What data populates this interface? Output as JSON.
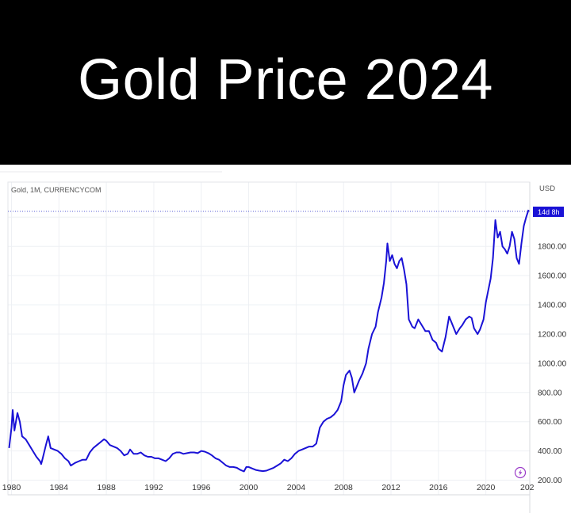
{
  "banner": {
    "title": "Gold Price 2024"
  },
  "chart_header": {
    "symbol": "Gold, 1M, CURRENCYCOM",
    "currency": "USD",
    "countdown": "14d 8h"
  },
  "colors": {
    "line": "#1a12d6",
    "grid": "#eef0f4",
    "badge": "#1a12d6",
    "lightning": "#9b3cc9"
  },
  "icons": {
    "lightning": "lightning-icon"
  },
  "chart_data": {
    "type": "line",
    "title": "",
    "xlabel": "",
    "ylabel": "",
    "x_tick_labels": [
      "1980",
      "1984",
      "1988",
      "1992",
      "1996",
      "2000",
      "2004",
      "2008",
      "2012",
      "2016",
      "2020",
      "202"
    ],
    "y_tick_labels": [
      "200.00",
      "400.00",
      "600.00",
      "800.00",
      "1000.00",
      "1200.00",
      "1400.00",
      "1600.00",
      "1800.00"
    ],
    "xlim": [
      1979.7,
      2023.7
    ],
    "ylim": [
      100,
      2240
    ],
    "grid": true,
    "series": [
      {
        "x": [
          1979.8,
          1980.0,
          1980.1,
          1980.25,
          1980.5,
          1980.7,
          1980.9,
          1981.2,
          1981.5,
          1981.8,
          1982.1,
          1982.4,
          1982.5,
          1982.6,
          1982.9,
          1983.1,
          1983.3,
          1983.6,
          1983.9,
          1984.2,
          1984.5,
          1984.8,
          1985.0,
          1985.2,
          1985.4,
          1985.7,
          1986.0,
          1986.3,
          1986.6,
          1986.9,
          1987.2,
          1987.5,
          1987.8,
          1988.0,
          1988.3,
          1988.6,
          1988.9,
          1989.2,
          1989.5,
          1989.8,
          1990.0,
          1990.3,
          1990.6,
          1990.9,
          1991.2,
          1991.5,
          1991.8,
          1992.1,
          1992.4,
          1992.7,
          1993.0,
          1993.3,
          1993.6,
          1993.9,
          1994.2,
          1994.5,
          1994.8,
          1995.1,
          1995.4,
          1995.7,
          1996.0,
          1996.3,
          1996.6,
          1996.9,
          1997.2,
          1997.5,
          1997.8,
          1998.1,
          1998.4,
          1998.7,
          1999.0,
          1999.3,
          1999.6,
          1999.8,
          2000.0,
          2000.3,
          2000.6,
          2000.9,
          2001.2,
          2001.5,
          2001.8,
          2002.1,
          2002.4,
          2002.7,
          2003.0,
          2003.3,
          2003.6,
          2003.9,
          2004.2,
          2004.5,
          2004.8,
          2005.1,
          2005.4,
          2005.7,
          2006.0,
          2006.3,
          2006.6,
          2006.9,
          2007.2,
          2007.5,
          2007.8,
          2008.0,
          2008.2,
          2008.5,
          2008.7,
          2008.9,
          2009.0,
          2009.3,
          2009.6,
          2009.9,
          2010.1,
          2010.4,
          2010.7,
          2010.9,
          2011.2,
          2011.4,
          2011.6,
          2011.7,
          2011.9,
          2012.1,
          2012.3,
          2012.5,
          2012.7,
          2012.9,
          2013.1,
          2013.3,
          2013.5,
          2013.8,
          2014.0,
          2014.3,
          2014.6,
          2014.9,
          2015.2,
          2015.5,
          2015.8,
          2016.0,
          2016.3,
          2016.6,
          2016.9,
          2017.2,
          2017.5,
          2017.8,
          2018.0,
          2018.3,
          2018.6,
          2018.8,
          2019.0,
          2019.3,
          2019.5,
          2019.8,
          2020.0,
          2020.2,
          2020.4,
          2020.6,
          2020.8,
          2021.0,
          2021.2,
          2021.4,
          2021.6,
          2021.8,
          2022.0,
          2022.2,
          2022.4,
          2022.6,
          2022.8,
          2023.0,
          2023.2,
          2023.4,
          2023.6
        ],
        "y": [
          420,
          560,
          680,
          540,
          660,
          600,
          500,
          480,
          440,
          400,
          360,
          330,
          310,
          340,
          440,
          500,
          420,
          410,
          400,
          380,
          350,
          330,
          300,
          310,
          320,
          330,
          340,
          340,
          390,
          420,
          440,
          460,
          480,
          470,
          440,
          430,
          420,
          400,
          370,
          380,
          410,
          380,
          380,
          390,
          370,
          360,
          360,
          350,
          350,
          340,
          330,
          350,
          380,
          390,
          390,
          380,
          385,
          390,
          390,
          385,
          400,
          395,
          385,
          370,
          350,
          340,
          320,
          300,
          290,
          290,
          285,
          270,
          260,
          290,
          290,
          280,
          270,
          265,
          262,
          265,
          275,
          285,
          300,
          315,
          340,
          330,
          350,
          380,
          400,
          410,
          420,
          430,
          430,
          450,
          560,
          600,
          620,
          630,
          650,
          680,
          740,
          850,
          920,
          950,
          900,
          800,
          820,
          880,
          930,
          1000,
          1100,
          1200,
          1250,
          1350,
          1450,
          1550,
          1700,
          1820,
          1700,
          1740,
          1680,
          1650,
          1700,
          1720,
          1640,
          1540,
          1300,
          1250,
          1240,
          1300,
          1260,
          1220,
          1220,
          1160,
          1140,
          1100,
          1080,
          1180,
          1320,
          1260,
          1200,
          1240,
          1260,
          1300,
          1320,
          1310,
          1240,
          1200,
          1230,
          1300,
          1420,
          1500,
          1580,
          1720,
          1980,
          1860,
          1900,
          1800,
          1780,
          1750,
          1800,
          1900,
          1850,
          1720,
          1680,
          1820,
          1940,
          2000,
          2050
        ]
      }
    ]
  }
}
